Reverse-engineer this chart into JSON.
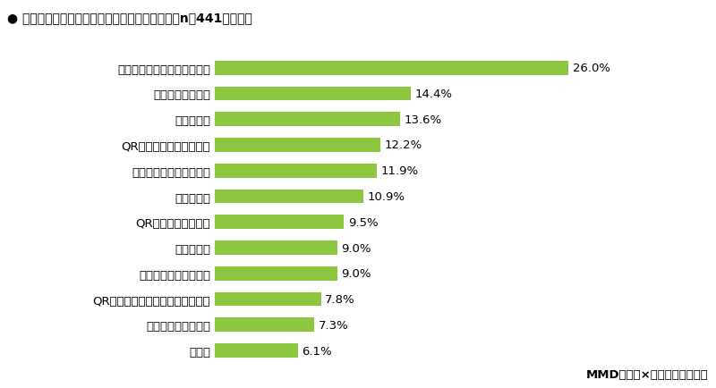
{
  "title": "● キャッシュレス決済でトラブルに遇ったこと（n＝441、複数）",
  "categories": [
    "クレジットカードの不正利用",
    "フィッシング詐欺",
    "なりすまし",
    "QRコード決済の不正利用",
    "ネットショッピング詐欺",
    "スキミング",
    "QRコード決済の盗撃",
    "紛失・盗難",
    "事業者による情報漏洩",
    "QRコード決済のステッカー型詐欺",
    "出会い系サイト詐欺",
    "その他"
  ],
  "values": [
    26.0,
    14.4,
    13.6,
    12.2,
    11.9,
    10.9,
    9.5,
    9.0,
    9.0,
    7.8,
    7.3,
    6.1
  ],
  "bar_color": "#8DC63F",
  "background_color": "#FFFFFF",
  "text_color": "#000000",
  "label_fontsize": 9.5,
  "title_fontsize": 10,
  "value_fontsize": 9.5,
  "footnote": "MMD研究所×スマートアンサー",
  "xlim": [
    0,
    30
  ]
}
